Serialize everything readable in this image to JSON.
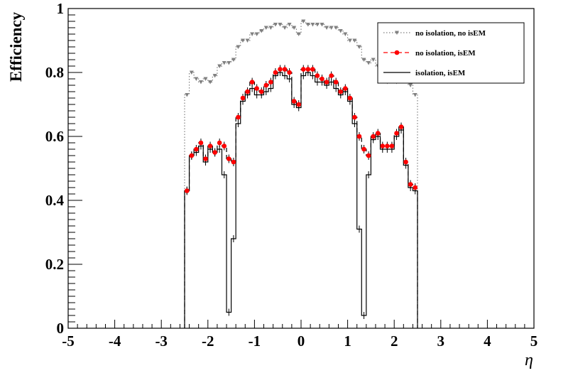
{
  "chart_data": {
    "type": "line",
    "xlabel": "η",
    "ylabel": "Efficiency",
    "xlim": [
      -5,
      5
    ],
    "ylim": [
      0,
      1
    ],
    "x_ticks": [
      "-5",
      "-4",
      "-3",
      "-2",
      "-1",
      "0",
      "1",
      "2",
      "3",
      "4",
      "5"
    ],
    "y_ticks": [
      "0",
      "0.2",
      "0.4",
      "0.6",
      "0.8",
      "1"
    ],
    "grid": false,
    "legend_position": "top-right",
    "x": [
      -2.45,
      -2.35,
      -2.25,
      -2.15,
      -2.05,
      -1.95,
      -1.85,
      -1.75,
      -1.65,
      -1.55,
      -1.45,
      -1.35,
      -1.25,
      -1.15,
      -1.05,
      -0.95,
      -0.85,
      -0.75,
      -0.65,
      -0.55,
      -0.45,
      -0.35,
      -0.25,
      -0.15,
      -0.05,
      0.05,
      0.15,
      0.25,
      0.35,
      0.45,
      0.55,
      0.65,
      0.75,
      0.85,
      0.95,
      1.05,
      1.15,
      1.25,
      1.35,
      1.45,
      1.55,
      1.65,
      1.75,
      1.85,
      1.95,
      2.05,
      2.15,
      2.25,
      2.35,
      2.45
    ],
    "series": [
      {
        "name": "no isolation, no isEM",
        "style": "dotted-triangle",
        "color": "#808080",
        "values": [
          0.73,
          0.8,
          0.78,
          0.77,
          0.78,
          0.77,
          0.79,
          0.82,
          0.83,
          0.83,
          0.84,
          0.88,
          0.9,
          0.9,
          0.92,
          0.92,
          0.93,
          0.94,
          0.94,
          0.95,
          0.95,
          0.94,
          0.95,
          0.94,
          0.92,
          0.96,
          0.95,
          0.95,
          0.95,
          0.95,
          0.94,
          0.94,
          0.94,
          0.93,
          0.92,
          0.9,
          0.9,
          0.88,
          0.84,
          0.83,
          0.84,
          0.82,
          0.79,
          0.77,
          0.78,
          0.77,
          0.78,
          0.8,
          0.76,
          0.73
        ]
      },
      {
        "name": "no isolation, isEM",
        "style": "dashed-marker",
        "color": "#ff0000",
        "values": [
          0.43,
          0.54,
          0.56,
          0.58,
          0.53,
          0.57,
          0.55,
          0.58,
          0.57,
          0.53,
          0.52,
          0.66,
          0.72,
          0.74,
          0.77,
          0.75,
          0.74,
          0.76,
          0.77,
          0.8,
          0.81,
          0.81,
          0.8,
          0.71,
          0.7,
          0.81,
          0.81,
          0.81,
          0.79,
          0.78,
          0.77,
          0.79,
          0.77,
          0.74,
          0.75,
          0.72,
          0.66,
          0.6,
          0.56,
          0.54,
          0.6,
          0.61,
          0.57,
          0.57,
          0.57,
          0.61,
          0.63,
          0.52,
          0.45,
          0.44
        ]
      },
      {
        "name": "isolation, isEM",
        "style": "solid",
        "color": "#000000",
        "values": [
          0.43,
          0.54,
          0.55,
          0.57,
          0.52,
          0.56,
          0.55,
          0.56,
          0.48,
          0.05,
          0.28,
          0.64,
          0.71,
          0.73,
          0.75,
          0.73,
          0.73,
          0.74,
          0.75,
          0.79,
          0.8,
          0.79,
          0.78,
          0.7,
          0.69,
          0.79,
          0.8,
          0.79,
          0.77,
          0.77,
          0.76,
          0.77,
          0.75,
          0.73,
          0.74,
          0.71,
          0.64,
          0.31,
          0.04,
          0.48,
          0.59,
          0.6,
          0.56,
          0.56,
          0.56,
          0.6,
          0.62,
          0.51,
          0.44,
          0.43
        ]
      }
    ]
  }
}
